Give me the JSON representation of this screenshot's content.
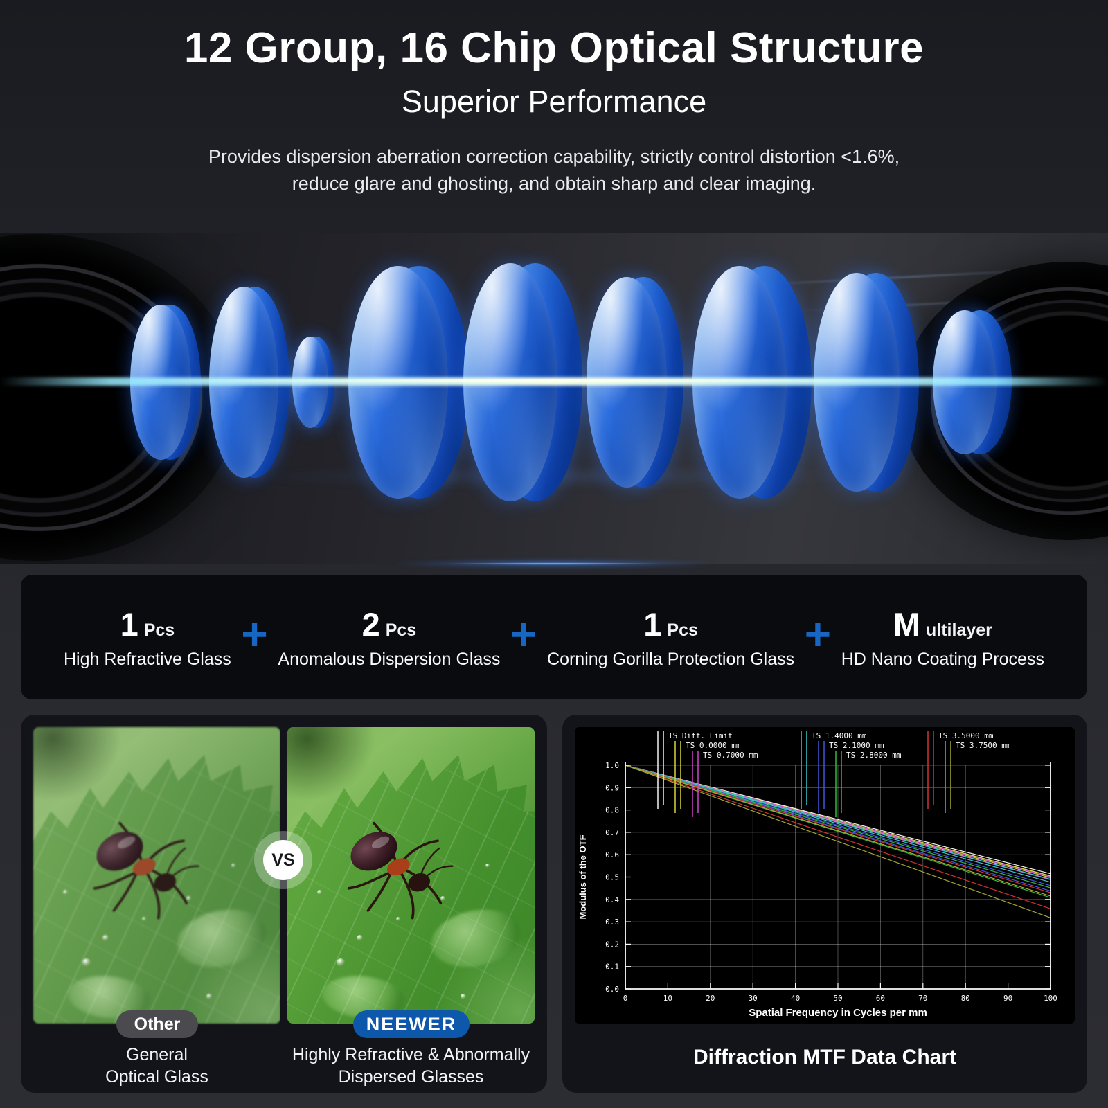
{
  "header": {
    "title": "12 Group, 16 Chip Optical Structure",
    "subtitle": "Superior Performance",
    "description_line1": "Provides dispersion aberration correction capability, strictly control distortion <1.6%,",
    "description_line2": "reduce glare and ghosting, and obtain sharp and clear imaging."
  },
  "features": {
    "plus": "+",
    "items": [
      {
        "num": "1",
        "unit": "Pcs",
        "label": "High Refractive Glass"
      },
      {
        "num": "2",
        "unit": "Pcs",
        "label": "Anomalous Dispersion Glass"
      },
      {
        "num": "1",
        "unit": "Pcs",
        "label": "Corning Gorilla Protection Glass"
      },
      {
        "num": "M",
        "unit": "ultilayer",
        "label": "HD Nano Coating Process"
      }
    ]
  },
  "comparison": {
    "vs_label": "VS",
    "left": {
      "pill": "Other",
      "caption_line1": "General",
      "caption_line2": "Optical Glass"
    },
    "right": {
      "pill": "NEEWER",
      "caption_line1": "Highly Refractive & Abnormally",
      "caption_line2": "Dispersed Glasses"
    },
    "colors": {
      "other_pill": "#4a4a4f",
      "neewer_pill": "#0d58aa"
    }
  },
  "chart_data": {
    "type": "line",
    "title": "Diffraction MTF Data Chart",
    "xlabel": "Spatial Frequency in Cycles per mm",
    "ylabel": "Modulus of the OTF",
    "xlim": [
      0,
      100
    ],
    "ylim": [
      0.0,
      1.0
    ],
    "xticks": [
      0,
      10,
      20,
      30,
      40,
      50,
      60,
      70,
      80,
      90,
      100
    ],
    "yticks": [
      0.0,
      0.1,
      0.2,
      0.3,
      0.4,
      0.5,
      0.6,
      0.7,
      0.8,
      0.9,
      1.0
    ],
    "grid": true,
    "legend_position": "top",
    "series": [
      {
        "name": "TS Diff. Limit",
        "color": "#f2f2f2",
        "x": [
          0,
          100
        ],
        "t": [
          1.0,
          0.515
        ],
        "s": [
          1.0,
          0.505
        ]
      },
      {
        "name": "TS 0.0000 mm",
        "color": "#d6d63a",
        "x": [
          0,
          100
        ],
        "t": [
          1.0,
          0.505
        ],
        "s": [
          1.0,
          0.497
        ]
      },
      {
        "name": "TS 0.7000 mm",
        "color": "#cc46cc",
        "x": [
          0,
          100
        ],
        "t": [
          1.0,
          0.5
        ],
        "s": [
          1.0,
          0.488
        ]
      },
      {
        "name": "TS 1.4000 mm",
        "color": "#3cc8c8",
        "x": [
          0,
          100
        ],
        "t": [
          1.0,
          0.49
        ],
        "s": [
          1.0,
          0.477
        ]
      },
      {
        "name": "TS 2.1000 mm",
        "color": "#4554dd",
        "x": [
          0,
          100
        ],
        "t": [
          1.0,
          0.462
        ],
        "s": [
          1.0,
          0.438
        ]
      },
      {
        "name": "TS 2.8000 mm",
        "color": "#35b840",
        "x": [
          0,
          100
        ],
        "t": [
          1.0,
          0.452
        ],
        "s": [
          1.0,
          0.408
        ]
      },
      {
        "name": "TS 3.5000 mm",
        "color": "#cf3434",
        "x": [
          0,
          100
        ],
        "t": [
          1.0,
          0.43
        ],
        "s": [
          1.0,
          0.358
        ]
      },
      {
        "name": "TS 3.7500 mm",
        "color": "#a6a632",
        "x": [
          0,
          100
        ],
        "t": [
          1.0,
          0.415
        ],
        "s": [
          1.0,
          0.318
        ]
      }
    ]
  }
}
